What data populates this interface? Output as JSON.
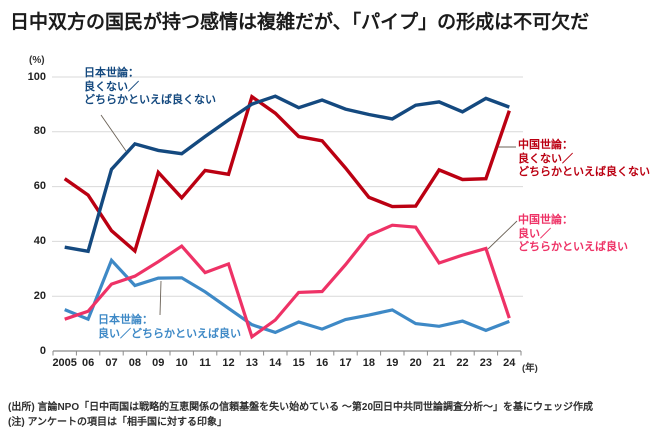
{
  "title": "日中双方の国民が持つ感情は複雑だが、「パイプ」の形成は不可欠だ",
  "axes": {
    "y_unit": "(%)",
    "x_unit": "(年)",
    "ytick_labels": [
      "0",
      "20",
      "40",
      "60",
      "80",
      "100"
    ],
    "xtick_labels": [
      "2005",
      "06",
      "07",
      "08",
      "09",
      "10",
      "11",
      "12",
      "13",
      "14",
      "15",
      "16",
      "17",
      "18",
      "19",
      "20",
      "21",
      "22",
      "23",
      "24"
    ]
  },
  "legend": {
    "japan_negative": {
      "line1": "日本世論：",
      "line2": "良くない／",
      "line3": "どちらかといえば良くない"
    },
    "china_negative": {
      "line1": "中国世論：",
      "line2": "良くない／",
      "line3": "どちらかといえば良くない"
    },
    "china_positive": {
      "line1": "中国世論：",
      "line2": "良い／",
      "line3": "どちらかといえば良い"
    },
    "japan_positive": {
      "line1": "日本世論：",
      "line2": "良い／どちらかといえば良い"
    }
  },
  "colors": {
    "japan_negative": "#14497f",
    "china_negative": "#bb0012",
    "china_positive": "#ee3266",
    "japan_positive": "#3e89c6",
    "gridline": "#d9d9d9",
    "axis": "#8a8a8a"
  },
  "footer": {
    "source": "(出所) 言論NPO「日中両国は戦略的互恵関係の信頼基盤を失い始めている ～第20回日中共同世論調査分析～」を基にウェッジ作成",
    "note": "(注) アンケートの項目は「相手国に対する印象」"
  },
  "chart_data": {
    "type": "line",
    "title": "日中双方の国民が持つ感情は複雑だが、「パイプ」の形成は不可欠だ",
    "xlabel": "年",
    "ylabel": "%",
    "ylim": [
      0,
      100
    ],
    "yticks": [
      0,
      20,
      40,
      60,
      80,
      100
    ],
    "grid": true,
    "legend_position": "annotated-on-chart",
    "x": [
      2005,
      2006,
      2007,
      2008,
      2009,
      2010,
      2011,
      2012,
      2013,
      2014,
      2015,
      2016,
      2017,
      2018,
      2019,
      2020,
      2021,
      2022,
      2023,
      2024
    ],
    "series": [
      {
        "name": "日本世論：良くない／どちらかといえば良くない",
        "color": "#14497f",
        "values": [
          37.9,
          36.4,
          66.3,
          75.6,
          73.2,
          72.0,
          78.3,
          84.3,
          90.1,
          93.0,
          88.8,
          91.6,
          88.3,
          86.3,
          84.7,
          89.7,
          90.9,
          87.3,
          92.2,
          89.0
        ]
      },
      {
        "name": "中国世論：良くない／どちらかといえば良くない",
        "color": "#bb0012",
        "values": [
          62.9,
          56.9,
          43.9,
          36.5,
          65.2,
          55.9,
          65.9,
          64.5,
          92.8,
          86.8,
          78.3,
          76.7,
          66.8,
          56.1,
          52.7,
          52.9,
          66.1,
          62.6,
          62.9,
          87.7
        ]
      },
      {
        "name": "中国世論：良い／どちらかといえば良い",
        "color": "#ee3266",
        "values": [
          11.6,
          14.5,
          24.4,
          27.3,
          32.6,
          38.3,
          28.6,
          31.8,
          5.2,
          11.3,
          21.4,
          21.7,
          31.5,
          42.2,
          45.9,
          45.2,
          32.1,
          35.0,
          37.4,
          12.0
        ]
      },
      {
        "name": "日本世論：良い／どちらかといえば良い",
        "color": "#3e89c6",
        "values": [
          15.1,
          11.6,
          33.1,
          23.9,
          26.6,
          26.7,
          21.6,
          15.6,
          9.6,
          6.8,
          10.6,
          8.0,
          11.5,
          13.1,
          15.0,
          10.0,
          9.0,
          10.9,
          7.5,
          10.8
        ]
      }
    ]
  }
}
